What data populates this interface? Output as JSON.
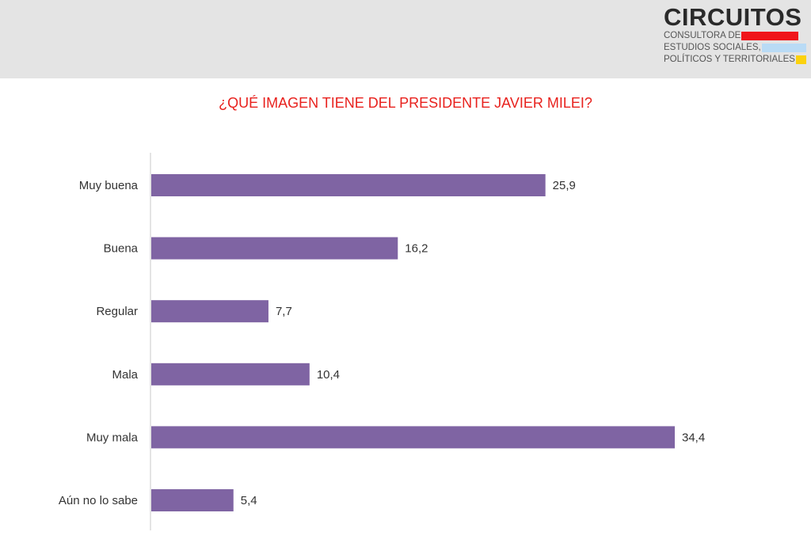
{
  "logo": {
    "name": "CIRCUITOS",
    "lines": [
      "CONSULTORA DE",
      "ESTUDIOS SOCIALES,",
      "POLÍTICOS Y TERRITORIALES"
    ],
    "colors": [
      "#f0161b",
      "#b9dbf5",
      "#fbd20e"
    ]
  },
  "chart_data": {
    "type": "bar",
    "orientation": "horizontal",
    "title": "¿QUÉ IMAGEN TIENE DEL PRESIDENTE JAVIER MILEI?",
    "categories": [
      "Muy buena",
      "Buena",
      "Regular",
      "Mala",
      "Muy mala",
      "Aún no lo sabe"
    ],
    "values": [
      25.9,
      16.2,
      7.7,
      10.4,
      34.4,
      5.4
    ],
    "value_labels": [
      "25,9",
      "16,2",
      "7,7",
      "10,4",
      "34,4",
      "5,4"
    ],
    "xlim": [
      0,
      35
    ],
    "grid": false,
    "bar_color": "#7f64a3",
    "title_color": "#e8211d"
  }
}
